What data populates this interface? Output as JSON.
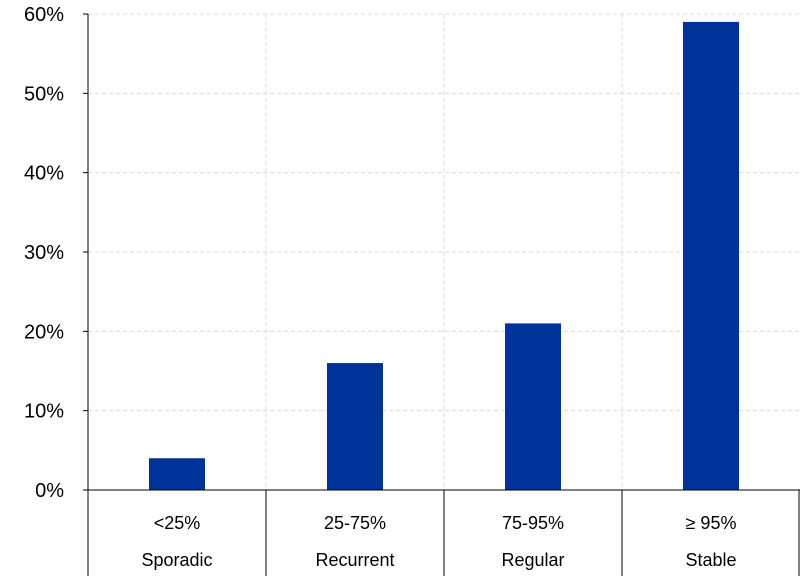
{
  "chart_data": {
    "type": "bar",
    "categories": [
      {
        "range": "<25%",
        "name": "Sporadic"
      },
      {
        "range": "25-75%",
        "name": "Recurrent"
      },
      {
        "range": "75-95%",
        "name": "Regular"
      },
      {
        "range": "≥ 95%",
        "name": "Stable"
      }
    ],
    "values": [
      4,
      16,
      21,
      59
    ],
    "ylim": [
      0,
      60
    ],
    "yticks": [
      0,
      10,
      20,
      30,
      40,
      50,
      60
    ],
    "ytick_labels": [
      "0%",
      "10%",
      "20%",
      "30%",
      "40%",
      "50%",
      "60%"
    ],
    "title": "",
    "xlabel": "",
    "ylabel": "",
    "grid": true,
    "legend": "none",
    "bar_color": "#003399",
    "grid_color": "#d9d9d9"
  }
}
